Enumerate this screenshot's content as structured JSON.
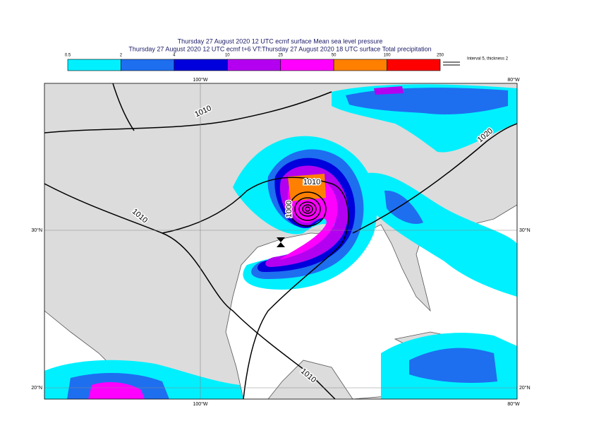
{
  "header": {
    "title_line1": "Thursday 27 August 2020 12 UTC ecmf surface  Mean sea level pressure",
    "title_line2": "Thursday 27 August 2020 12 UTC ecmf t+6 VT:Thursday 27 August 2020 18 UTC surface  Total precipitation"
  },
  "legend": {
    "levels": [
      0.5,
      2,
      4,
      10,
      25,
      50,
      100,
      250
    ],
    "colors": [
      "#00f0ff",
      "#1e6ef0",
      "#0000dc",
      "#b400f0",
      "#ff00ff",
      "#ff8000",
      "#ff0000"
    ],
    "note": "Interval 5, thickness 2"
  },
  "map": {
    "lon_labels": [
      "100°W",
      "80°W"
    ],
    "lat_labels": [
      "30°N",
      "20°N"
    ],
    "contour_labels": [
      "1010",
      "1010",
      "1010",
      "1000",
      "1020",
      "1010"
    ]
  }
}
